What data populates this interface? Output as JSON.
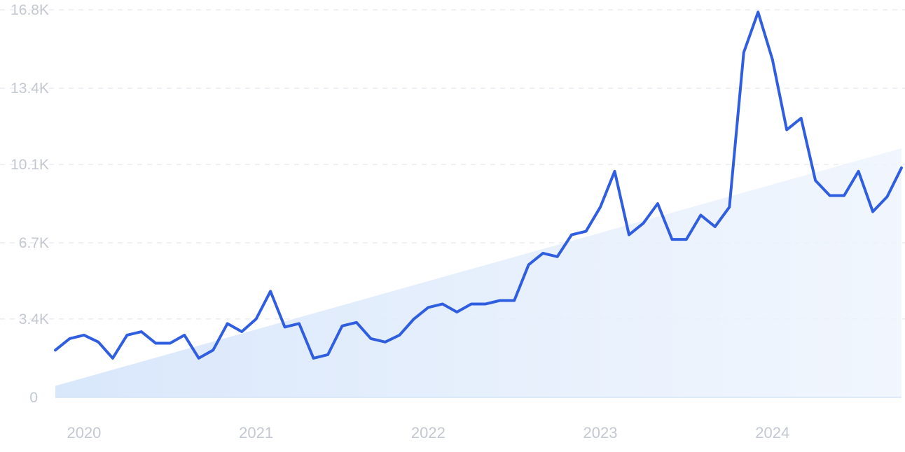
{
  "chart_data": {
    "type": "line",
    "title": "",
    "xlabel": "",
    "ylabel": "",
    "ylim": [
      0,
      16800
    ],
    "y_ticks": [
      {
        "value": 0,
        "label": "0"
      },
      {
        "value": 3400,
        "label": "3.4K"
      },
      {
        "value": 6700,
        "label": "6.7K"
      },
      {
        "value": 10100,
        "label": "10.1K"
      },
      {
        "value": 13400,
        "label": "13.4K"
      },
      {
        "value": 16800,
        "label": "16.8K"
      }
    ],
    "x_ticks": [
      {
        "value": 2,
        "label": "2020"
      },
      {
        "value": 14,
        "label": "2021"
      },
      {
        "value": 26,
        "label": "2022"
      },
      {
        "value": 38,
        "label": "2023"
      },
      {
        "value": 50,
        "label": "2024"
      }
    ],
    "grid": "horizontal-dashed",
    "legend": "none",
    "colors": {
      "line": "#2f5ee0",
      "trend_fill": "#dbe8fb"
    },
    "series": [
      {
        "values": [
          2050,
          2550,
          2700,
          2400,
          1700,
          2700,
          2850,
          2350,
          2350,
          2700,
          1700,
          2050,
          3200,
          2850,
          3400,
          4600,
          3050,
          3200,
          1700,
          1850,
          3100,
          3250,
          2550,
          2400,
          2700,
          3400,
          3900,
          4050,
          3700,
          4050,
          4050,
          4200,
          4200,
          5750,
          6250,
          6100,
          7050,
          7200,
          8250,
          9800,
          7050,
          7550,
          8400,
          6850,
          6850,
          7900,
          7400,
          8250,
          14950,
          16700,
          14650,
          11600,
          12100,
          9400,
          8750,
          8750,
          9800,
          8050,
          8700,
          9950
        ]
      }
    ],
    "trend": {
      "start": 500,
      "end": 10800
    }
  }
}
